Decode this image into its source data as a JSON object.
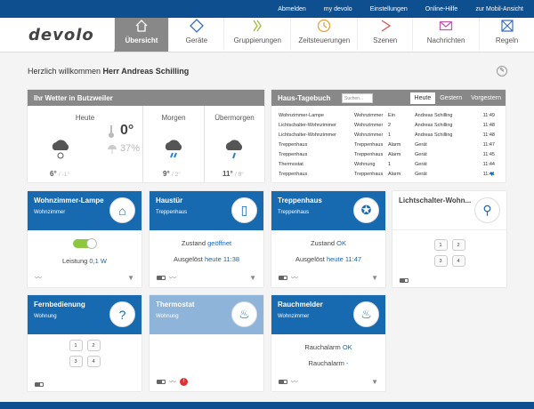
{
  "topbar": [
    "Abmelden",
    "my devolo",
    "Einstellungen",
    "Online-Hilfe",
    "zur Mobil-Ansicht"
  ],
  "logo": "devolo",
  "tabs": [
    "Übersicht",
    "Geräte",
    "Gruppierungen",
    "Zeitsteuerungen",
    "Szenen",
    "Nachrichten",
    "Regeln"
  ],
  "greeting": {
    "prefix": "Herzlich willkommen",
    "user": "Herr Andreas Schilling"
  },
  "weather": {
    "title": "Ihr Wetter in Butzweiler",
    "today": {
      "label": "Heute",
      "temp": "0°",
      "rain": "37%",
      "hi": "6°",
      "lo": "/ -1°"
    },
    "tomorrow": {
      "label": "Morgen",
      "hi": "9°",
      "lo": "/ 2°"
    },
    "after": {
      "label": "Übermorgen",
      "hi": "11°",
      "lo": "/ 8°"
    }
  },
  "diary": {
    "title": "Haus-Tagebuch",
    "search": "Suchen...",
    "tabs": [
      "Heute",
      "Gestern",
      "Vorgestern"
    ],
    "rows": [
      [
        "Wohnzimmer-Lampe",
        "Wohnzimmer",
        "Ein",
        "Andreas Schilling",
        "11:49"
      ],
      [
        "Lichtschalter-Wohnzimmer",
        "Wohnzimmer",
        "2",
        "Andreas Schilling",
        "11:48"
      ],
      [
        "Lichtschalter-Wohnzimmer",
        "Wohnzimmer",
        "1",
        "Andreas Schilling",
        "11:48"
      ],
      [
        "Treppenhaus",
        "Treppenhaus",
        "Alarm",
        "Gerät",
        "11:47"
      ],
      [
        "Treppenhaus",
        "Treppenhaus",
        "Alarm",
        "Gerät",
        "11:45"
      ],
      [
        "Thermostat",
        "Wohnung",
        "1",
        "Gerät",
        "11:44"
      ],
      [
        "Treppenhaus",
        "Treppenhaus",
        "Alarm",
        "Gerät",
        "11:41"
      ]
    ]
  },
  "devices": [
    {
      "name": "Wohnzimmer-Lampe",
      "room": "Wohnzimmer",
      "line": "Leistung",
      "value": "0,1 W",
      "icon": "lamp-icon"
    },
    {
      "name": "Haustür",
      "room": "Treppenhaus",
      "line": "Zustand",
      "value": "geöffnet",
      "line2": "Ausgelöst",
      "value2": "heute 11:38",
      "icon": "door-icon"
    },
    {
      "name": "Treppenhaus",
      "room": "Treppenhaus",
      "line": "Zustand",
      "value": "OK",
      "line2": "Ausgelöst",
      "value2": "heute 11:47",
      "icon": "motion-icon"
    },
    {
      "name": "Lichtschalter-Wohn...",
      "room": "",
      "keys": [
        "1",
        "2",
        "3",
        "4"
      ],
      "icon": "switch-icon"
    },
    {
      "name": "Fernbedienung",
      "room": "Wohnung",
      "keys": [
        "1",
        "2",
        "3",
        "4"
      ],
      "icon": "remote-icon"
    },
    {
      "name": "Thermostat",
      "room": "Wohnung",
      "icon": "thermostat-icon"
    },
    {
      "name": "Rauchmelder",
      "room": "Wohnzimmer",
      "line": "Rauchalarm",
      "value": "OK",
      "line2": "Rauchalarm",
      "value2": "-",
      "icon": "smoke-icon"
    }
  ],
  "colors": {
    "accent": "#1769b0",
    "topbar": "#0d4f8f",
    "header_grey": "#888888"
  }
}
